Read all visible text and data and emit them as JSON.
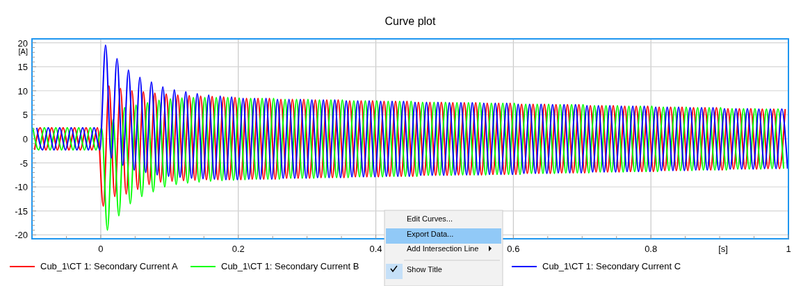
{
  "chart_data": {
    "type": "line",
    "title": "Curve plot",
    "xlabel": "[s]",
    "ylabel": "[A]",
    "xlim": [
      -0.1,
      1.0
    ],
    "ylim": [
      -20.8,
      20.8
    ],
    "xticks": [
      {
        "value": -0.05,
        "label": null
      },
      0,
      {
        "value": 0.05,
        "label": null
      },
      {
        "value": 0.1,
        "label": null
      },
      {
        "value": 0.15,
        "label": null
      },
      0.2,
      {
        "value": 0.25,
        "label": null
      },
      {
        "value": 0.3,
        "label": null
      },
      {
        "value": 0.35,
        "label": null
      },
      0.4,
      {
        "value": 0.45,
        "label": null
      },
      {
        "value": 0.5,
        "label": null
      },
      {
        "value": 0.55,
        "label": null
      },
      0.6,
      {
        "value": 0.65,
        "label": null
      },
      {
        "value": 0.7,
        "label": null
      },
      {
        "value": 0.75,
        "label": null
      },
      0.8,
      {
        "value": 0.85,
        "label": null
      },
      {
        "value": 0.9,
        "label": null
      },
      {
        "value": 0.95,
        "label": null
      },
      1
    ],
    "yticks": [
      -20,
      {
        "value": -19,
        "label": null
      },
      {
        "value": -18,
        "label": null
      },
      {
        "value": -17,
        "label": null
      },
      {
        "value": -16,
        "label": null
      },
      -15,
      {
        "value": -14,
        "label": null
      },
      {
        "value": -13,
        "label": null
      },
      {
        "value": -12,
        "label": null
      },
      {
        "value": -11,
        "label": null
      },
      -10,
      {
        "value": -9,
        "label": null
      },
      {
        "value": -8,
        "label": null
      },
      {
        "value": -7,
        "label": null
      },
      {
        "value": -6,
        "label": null
      },
      -5,
      {
        "value": -4,
        "label": null
      },
      {
        "value": -3,
        "label": null
      },
      {
        "value": -2,
        "label": null
      },
      {
        "value": -1,
        "label": null
      },
      0,
      {
        "value": 1,
        "label": null
      },
      {
        "value": 2,
        "label": null
      },
      {
        "value": 3,
        "label": null
      },
      {
        "value": 4,
        "label": null
      },
      5,
      {
        "value": 6,
        "label": null
      },
      {
        "value": 7,
        "label": null
      },
      {
        "value": 8,
        "label": null
      },
      {
        "value": 9,
        "label": null
      },
      10,
      {
        "value": 11,
        "label": null
      },
      {
        "value": 12,
        "label": null
      },
      {
        "value": 13,
        "label": null
      },
      {
        "value": 14,
        "label": null
      },
      15,
      {
        "value": 16,
        "label": null
      },
      {
        "value": 17,
        "label": null
      },
      {
        "value": 18,
        "label": null
      },
      {
        "value": 19,
        "label": null
      },
      20
    ],
    "grid": true,
    "legend": "bottom",
    "annotations": [
      "Edit Curves...",
      "Export Data...",
      "Add Intersection Line",
      "Show Title"
    ],
    "series": [
      {
        "name": "Cub_1\\CT 1: Secondary Current A",
        "color": "#ff0000",
        "x": [
          -0.0963,
          -0.088,
          -0.0797,
          -0.0713,
          -0.063,
          -0.0547,
          -0.0463,
          -0.038,
          -0.0297,
          -0.0213,
          -0.013,
          -0.0047,
          0.0037,
          0.012,
          0.0203,
          0.0287,
          0.037,
          0.0453,
          0.0537,
          0.062,
          0.0703,
          0.0787,
          0.087,
          0.0953,
          0.1037,
          0.112,
          0.1203,
          0.1287,
          0.137,
          0.1453,
          0.1537,
          0.162,
          0.1703,
          0.1787,
          0.187,
          0.1953,
          0.2037,
          0.212,
          0.2203,
          0.2287,
          0.237,
          0.2453,
          0.2537,
          0.262,
          0.2703,
          0.2787,
          0.287,
          0.2953,
          0.3037,
          0.312,
          0.3203,
          0.3287,
          0.337,
          0.3453,
          0.3537,
          0.362,
          0.3703,
          0.3787,
          0.387,
          0.3953,
          0.4037,
          0.412,
          0.4203,
          0.4287,
          0.437,
          0.4453,
          0.4537,
          0.462,
          0.4703,
          0.4787,
          0.487,
          0.4953,
          0.5037,
          0.512,
          0.5203,
          0.5287,
          0.537,
          0.5453,
          0.5537,
          0.562,
          0.5703,
          0.5787,
          0.587,
          0.5953,
          0.6037,
          0.612,
          0.6203,
          0.6287,
          0.637,
          0.6453,
          0.6537,
          0.662,
          0.6703,
          0.6787,
          0.687,
          0.6953,
          0.7037,
          0.712,
          0.7203,
          0.7287,
          0.737,
          0.7453,
          0.7537,
          0.762,
          0.7703,
          0.7787,
          0.787,
          0.7953,
          0.8037,
          0.812,
          0.8203,
          0.8287,
          0.837,
          0.8453,
          0.8537,
          0.862,
          0.8703,
          0.8787,
          0.887,
          0.8953,
          0.9037,
          0.912,
          0.9203,
          0.9287,
          0.937,
          0.9453,
          0.9537,
          0.962,
          0.9703,
          0.9787,
          0.987,
          0.9953
        ],
        "values": [
          -2.3,
          2.3,
          -2.3,
          2.3,
          -2.3,
          2.3,
          -2.3,
          2.3,
          -2.3,
          2.3,
          -2.3,
          2.3,
          -14,
          11,
          -12,
          10.5,
          -11.5,
          10,
          -10.5,
          9.8,
          -9.5,
          9.5,
          -9,
          9.3,
          -8.8,
          9.1,
          -8.7,
          9,
          -8.6,
          8.9,
          -8.5,
          8.8,
          -8.5,
          8.7,
          -8.5,
          8.6,
          -8.5,
          8.4,
          -8.4,
          8.4,
          -8.4,
          8.4,
          -8.4,
          8.2,
          -8.2,
          8.2,
          -8.2,
          8.2,
          -8.2,
          8.1,
          -8.1,
          8.1,
          -8.1,
          8.1,
          -8.1,
          7.9,
          -7.9,
          7.9,
          -7.9,
          7.9,
          -7.9,
          7.8,
          -7.8,
          7.8,
          -7.8,
          7.8,
          -7.8,
          7.6,
          -7.6,
          7.6,
          -7.6,
          7.6,
          -7.6,
          7.5,
          -7.5,
          7.5,
          -7.5,
          7.5,
          -7.5,
          7.4,
          -7.4,
          7.4,
          -7.4,
          7.4,
          -7.4,
          7.2,
          -7.2,
          7.2,
          -7.2,
          7.2,
          -7.2,
          7.1,
          -7.1,
          7.1,
          -7.1,
          7.1,
          -7.1,
          6.9,
          -6.9,
          6.9,
          -6.9,
          6.9,
          -6.9,
          6.8,
          -6.8,
          6.8,
          -6.8,
          6.8,
          -6.8,
          6.6,
          -6.6,
          6.6,
          -6.6,
          6.6,
          -6.6,
          6.5,
          -6.5,
          6.5,
          -6.5,
          6.5,
          -6.5,
          6.3,
          -6.3,
          6.3,
          -6.3,
          6.3,
          -6.3,
          6.2,
          -6.2,
          6.2,
          -6.2,
          6.2
        ]
      },
      {
        "name": "Cub_1\\CT 1: Secondary Current B",
        "color": "#00ff00",
        "x": [
          -0.0987,
          -0.0903,
          -0.082,
          -0.0737,
          -0.0653,
          -0.057,
          -0.0487,
          -0.0403,
          -0.032,
          -0.0237,
          -0.0153,
          -0.007,
          0.0013,
          0.0097,
          0.018,
          0.0263,
          0.0347,
          0.043,
          0.0513,
          0.0597,
          0.068,
          0.0763,
          0.0847,
          0.093,
          0.1013,
          0.1097,
          0.118,
          0.1263,
          0.1347,
          0.143,
          0.1513,
          0.1597,
          0.168,
          0.1763,
          0.1847,
          0.193,
          0.2013,
          0.2097,
          0.218,
          0.2263,
          0.2347,
          0.243,
          0.2513,
          0.2597,
          0.268,
          0.2763,
          0.2847,
          0.293,
          0.3013,
          0.3097,
          0.318,
          0.3263,
          0.3347,
          0.343,
          0.3513,
          0.3597,
          0.368,
          0.3763,
          0.3847,
          0.393,
          0.4013,
          0.4097,
          0.418,
          0.4263,
          0.4347,
          0.443,
          0.4513,
          0.4597,
          0.468,
          0.4763,
          0.4847,
          0.493,
          0.5013,
          0.5097,
          0.518,
          0.5263,
          0.5347,
          0.543,
          0.5513,
          0.5597,
          0.568,
          0.5763,
          0.5847,
          0.593,
          0.6013,
          0.6097,
          0.618,
          0.6263,
          0.6347,
          0.643,
          0.6513,
          0.6597,
          0.668,
          0.6763,
          0.6847,
          0.693,
          0.7013,
          0.7097,
          0.718,
          0.7263,
          0.7347,
          0.743,
          0.7513,
          0.7597,
          0.768,
          0.7763,
          0.7847,
          0.793,
          0.8013,
          0.8097,
          0.818,
          0.8263,
          0.8347,
          0.843,
          0.8513,
          0.8597,
          0.868,
          0.8763,
          0.8847,
          0.893,
          0.9013,
          0.9097,
          0.918,
          0.9263,
          0.9347,
          0.943,
          0.9513,
          0.9597,
          0.968,
          0.9763,
          0.9847,
          0.993
        ],
        "values": [
          2.3,
          -2.3,
          2.3,
          -2.3,
          2.3,
          -2.3,
          2.3,
          -2.3,
          2.3,
          -2.3,
          2.3,
          -2.3,
          2.3,
          -19,
          4,
          -16,
          6.5,
          -13.5,
          7,
          -12,
          7.5,
          -11,
          8,
          -10,
          8.3,
          -9.5,
          8.5,
          -9.2,
          8.6,
          -9,
          8.6,
          -8.8,
          8.6,
          -8.7,
          8.6,
          -8.6,
          8.5,
          -8.5,
          8.4,
          -8.4,
          8.4,
          -8.4,
          8.4,
          -8.4,
          8.2,
          -8.2,
          8.2,
          -8.2,
          8.2,
          -8.2,
          8.1,
          -8.1,
          8.1,
          -8.1,
          8.1,
          -8.1,
          7.9,
          -7.9,
          7.9,
          -7.9,
          7.9,
          -7.9,
          7.8,
          -7.8,
          7.8,
          -7.8,
          7.8,
          -7.8,
          7.6,
          -7.6,
          7.6,
          -7.6,
          7.6,
          -7.6,
          7.5,
          -7.5,
          7.5,
          -7.5,
          7.5,
          -7.5,
          7.4,
          -7.4,
          7.4,
          -7.4,
          7.4,
          -7.4,
          7.2,
          -7.2,
          7.2,
          -7.2,
          7.2,
          -7.2,
          7.1,
          -7.1,
          7.1,
          -7.1,
          7.1,
          -7.1,
          6.9,
          -6.9,
          6.9,
          -6.9,
          6.9,
          -6.9,
          6.8,
          -6.8,
          6.8,
          -6.8,
          6.8,
          -6.8,
          6.6,
          -6.6,
          6.6,
          -6.6,
          6.6,
          -6.6,
          6.5,
          -6.5,
          6.5,
          -6.5,
          6.5,
          -6.5,
          6.3,
          -6.3,
          6.3,
          -6.3,
          6.3,
          -6.3,
          6.2,
          -6.2,
          6.2,
          -6.2
        ]
      },
      {
        "name": "Cub_1\\CT 1: Secondary Current C",
        "color": "#0000ff",
        "x": [
          -0.093,
          -0.0847,
          -0.0763,
          -0.068,
          -0.0597,
          -0.0513,
          -0.043,
          -0.0347,
          -0.0263,
          -0.018,
          -0.0097,
          -0.0013,
          0.007,
          0.0153,
          0.0237,
          0.032,
          0.0403,
          0.0487,
          0.057,
          0.0653,
          0.0737,
          0.082,
          0.0903,
          0.0987,
          0.107,
          0.1153,
          0.1237,
          0.132,
          0.1403,
          0.1487,
          0.157,
          0.1653,
          0.1737,
          0.182,
          0.1903,
          0.1987,
          0.207,
          0.2153,
          0.2237,
          0.232,
          0.2403,
          0.2487,
          0.257,
          0.2653,
          0.2737,
          0.282,
          0.2903,
          0.2987,
          0.307,
          0.3153,
          0.3237,
          0.332,
          0.3403,
          0.3487,
          0.357,
          0.3653,
          0.3737,
          0.382,
          0.3903,
          0.3987,
          0.407,
          0.4153,
          0.4237,
          0.432,
          0.4403,
          0.4487,
          0.457,
          0.4653,
          0.4737,
          0.482,
          0.4903,
          0.4987,
          0.507,
          0.5153,
          0.5237,
          0.532,
          0.5403,
          0.5487,
          0.557,
          0.5653,
          0.5737,
          0.582,
          0.5903,
          0.5987,
          0.607,
          0.6153,
          0.6237,
          0.632,
          0.6403,
          0.6487,
          0.657,
          0.6653,
          0.6737,
          0.682,
          0.6903,
          0.6987,
          0.707,
          0.7153,
          0.7237,
          0.732,
          0.7403,
          0.7487,
          0.757,
          0.7653,
          0.7737,
          0.782,
          0.7903,
          0.7987,
          0.807,
          0.8153,
          0.8237,
          0.832,
          0.8403,
          0.8487,
          0.857,
          0.8653,
          0.8737,
          0.882,
          0.8903,
          0.8987,
          0.907,
          0.9153,
          0.9237,
          0.932,
          0.9403,
          0.9487,
          0.957,
          0.9653,
          0.9737,
          0.982,
          0.9903,
          0.9987
        ],
        "values": [
          2.3,
          -2.3,
          2.3,
          -2.3,
          2.3,
          -2.3,
          2.3,
          -2.3,
          2.3,
          -2.3,
          2.3,
          -2.3,
          19.5,
          -4,
          16.7,
          -5.5,
          14.3,
          -6.5,
          12.8,
          -7,
          11.8,
          -7.5,
          10.8,
          -7.8,
          10.2,
          -8,
          9.8,
          -8.2,
          9.4,
          -8.3,
          9.1,
          -8.4,
          8.9,
          -8.5,
          8.7,
          -8.5,
          8.4,
          -8.4,
          8.4,
          -8.4,
          8.4,
          -8.4,
          8.2,
          -8.2,
          8.2,
          -8.2,
          8.2,
          -8.2,
          8.1,
          -8.1,
          8.1,
          -8.1,
          8.1,
          -8.1,
          7.9,
          -7.9,
          7.9,
          -7.9,
          7.9,
          -7.9,
          7.8,
          -7.8,
          7.8,
          -7.8,
          7.8,
          -7.8,
          7.6,
          -7.6,
          7.6,
          -7.6,
          7.6,
          -7.6,
          7.5,
          -7.5,
          7.5,
          -7.5,
          7.5,
          -7.5,
          7.4,
          -7.4,
          7.4,
          -7.4,
          7.4,
          -7.4,
          7.2,
          -7.2,
          7.2,
          -7.2,
          7.2,
          -7.2,
          7.1,
          -7.1,
          7.1,
          -7.1,
          7.1,
          -7.1,
          6.9,
          -6.9,
          6.9,
          -6.9,
          6.9,
          -6.9,
          6.8,
          -6.8,
          6.8,
          -6.8,
          6.8,
          -6.8,
          6.6,
          -6.6,
          6.6,
          -6.6,
          6.6,
          -6.6,
          6.5,
          -6.5,
          6.5,
          -6.5,
          6.5,
          -6.5,
          6.3,
          -6.3,
          6.3,
          -6.3,
          6.3,
          -6.3,
          6.2,
          -6.2,
          6.2,
          -6.2,
          6.2,
          -6.2
        ]
      }
    ]
  }
}
